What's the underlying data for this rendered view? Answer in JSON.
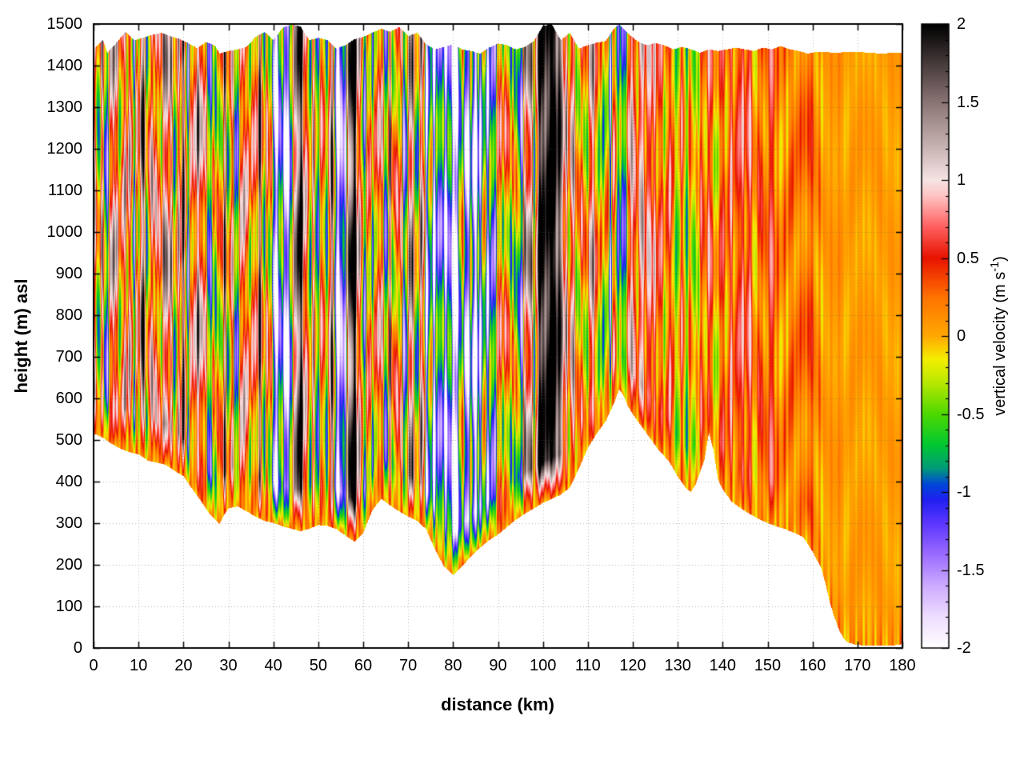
{
  "page": {
    "background": "#ffffff"
  },
  "chart_data": {
    "type": "heatmap",
    "title": "",
    "xlabel": "distance (km)",
    "ylabel": "height (m) asl",
    "xlim": [
      0,
      180
    ],
    "ylim": [
      0,
      1500
    ],
    "x_ticks": [
      0,
      10,
      20,
      30,
      40,
      50,
      60,
      70,
      80,
      90,
      100,
      110,
      120,
      130,
      140,
      150,
      160,
      170,
      180
    ],
    "y_ticks": [
      0,
      100,
      200,
      300,
      400,
      500,
      600,
      700,
      800,
      900,
      1000,
      1100,
      1200,
      1300,
      1400,
      1500
    ],
    "grid": true,
    "grid_style": "dotted-gray",
    "colorbar": {
      "label_main": "vertical velocity (m s",
      "label_sup": "-1",
      "label_close": ")",
      "position": "right",
      "range": [
        -2,
        2
      ],
      "ticks": [
        -2,
        -1.5,
        -1,
        -0.5,
        0,
        0.5,
        1,
        1.5,
        2
      ],
      "tick_labels": [
        "-2",
        "-1.5",
        "-1",
        "-0.5",
        "0",
        "0.5",
        "1",
        "1.5",
        "2"
      ],
      "minor_tick_step": 0.1,
      "colormap": [
        [
          -2.0,
          "#ffffff"
        ],
        [
          -1.8,
          "#eeddff"
        ],
        [
          -1.6,
          "#ccaaff"
        ],
        [
          -1.4,
          "#9b6bff"
        ],
        [
          -1.2,
          "#5a36ff"
        ],
        [
          -1.05,
          "#2020f0"
        ],
        [
          -0.95,
          "#0048d8"
        ],
        [
          -0.85,
          "#009a78"
        ],
        [
          -0.7,
          "#00c832"
        ],
        [
          -0.5,
          "#4fd800"
        ],
        [
          -0.3,
          "#b8e800"
        ],
        [
          -0.15,
          "#f4ee00"
        ],
        [
          0.0,
          "#ffa800"
        ],
        [
          0.25,
          "#ff7300"
        ],
        [
          0.5,
          "#e81200"
        ],
        [
          0.7,
          "#ff5f5f"
        ],
        [
          0.9,
          "#ffc4c4"
        ],
        [
          1.0,
          "#f6e4e4"
        ],
        [
          1.2,
          "#cbb6b6"
        ],
        [
          1.5,
          "#8a7474"
        ],
        [
          1.75,
          "#463a3a"
        ],
        [
          2.0,
          "#000000"
        ]
      ]
    },
    "terrain_profile": [
      [
        0,
        515
      ],
      [
        2,
        505
      ],
      [
        4,
        490
      ],
      [
        6,
        478
      ],
      [
        8,
        470
      ],
      [
        10,
        465
      ],
      [
        12,
        450
      ],
      [
        14,
        445
      ],
      [
        16,
        440
      ],
      [
        18,
        425
      ],
      [
        20,
        412
      ],
      [
        22,
        380
      ],
      [
        24,
        350
      ],
      [
        26,
        318
      ],
      [
        28,
        298
      ],
      [
        29,
        320
      ],
      [
        30,
        335
      ],
      [
        32,
        340
      ],
      [
        34,
        328
      ],
      [
        36,
        315
      ],
      [
        38,
        305
      ],
      [
        40,
        300
      ],
      [
        42,
        292
      ],
      [
        44,
        286
      ],
      [
        46,
        280
      ],
      [
        48,
        286
      ],
      [
        50,
        295
      ],
      [
        52,
        293
      ],
      [
        54,
        285
      ],
      [
        56,
        270
      ],
      [
        58,
        255
      ],
      [
        60,
        276
      ],
      [
        62,
        330
      ],
      [
        64,
        358
      ],
      [
        66,
        342
      ],
      [
        68,
        328
      ],
      [
        70,
        315
      ],
      [
        72,
        305
      ],
      [
        74,
        285
      ],
      [
        76,
        235
      ],
      [
        78,
        195
      ],
      [
        80,
        175
      ],
      [
        82,
        195
      ],
      [
        84,
        220
      ],
      [
        86,
        240
      ],
      [
        88,
        258
      ],
      [
        90,
        272
      ],
      [
        92,
        290
      ],
      [
        94,
        308
      ],
      [
        96,
        322
      ],
      [
        98,
        335
      ],
      [
        100,
        348
      ],
      [
        102,
        358
      ],
      [
        104,
        368
      ],
      [
        106,
        385
      ],
      [
        108,
        430
      ],
      [
        110,
        480
      ],
      [
        112,
        515
      ],
      [
        114,
        545
      ],
      [
        116,
        592
      ],
      [
        117,
        622
      ],
      [
        118,
        606
      ],
      [
        119,
        580
      ],
      [
        120,
        562
      ],
      [
        122,
        532
      ],
      [
        124,
        502
      ],
      [
        126,
        472
      ],
      [
        128,
        450
      ],
      [
        130,
        412
      ],
      [
        132,
        382
      ],
      [
        133,
        375
      ],
      [
        134,
        392
      ],
      [
        135,
        422
      ],
      [
        136,
        452
      ],
      [
        137,
        518
      ],
      [
        138,
        475
      ],
      [
        139,
        405
      ],
      [
        140,
        382
      ],
      [
        142,
        352
      ],
      [
        144,
        336
      ],
      [
        146,
        322
      ],
      [
        148,
        310
      ],
      [
        150,
        300
      ],
      [
        152,
        292
      ],
      [
        154,
        285
      ],
      [
        156,
        276
      ],
      [
        158,
        266
      ],
      [
        160,
        232
      ],
      [
        162,
        192
      ],
      [
        163,
        152
      ],
      [
        164,
        105
      ],
      [
        165,
        72
      ],
      [
        166,
        42
      ],
      [
        167,
        22
      ],
      [
        168,
        12
      ],
      [
        170,
        6
      ],
      [
        174,
        5
      ],
      [
        178,
        5
      ],
      [
        180,
        8
      ]
    ],
    "top_profile": [
      [
        0,
        1442
      ],
      [
        2,
        1462
      ],
      [
        3,
        1432
      ],
      [
        5,
        1456
      ],
      [
        7,
        1482
      ],
      [
        9,
        1462
      ],
      [
        11,
        1468
      ],
      [
        13,
        1475
      ],
      [
        15,
        1480
      ],
      [
        17,
        1472
      ],
      [
        19,
        1465
      ],
      [
        21,
        1455
      ],
      [
        23,
        1443
      ],
      [
        25,
        1458
      ],
      [
        27,
        1448
      ],
      [
        28,
        1430
      ],
      [
        30,
        1436
      ],
      [
        32,
        1440
      ],
      [
        34,
        1446
      ],
      [
        36,
        1470
      ],
      [
        38,
        1482
      ],
      [
        40,
        1462
      ],
      [
        42,
        1492
      ],
      [
        44,
        1500
      ],
      [
        46,
        1495
      ],
      [
        48,
        1462
      ],
      [
        50,
        1468
      ],
      [
        52,
        1462
      ],
      [
        54,
        1442
      ],
      [
        56,
        1450
      ],
      [
        58,
        1464
      ],
      [
        60,
        1470
      ],
      [
        62,
        1480
      ],
      [
        64,
        1490
      ],
      [
        66,
        1482
      ],
      [
        68,
        1494
      ],
      [
        70,
        1472
      ],
      [
        72,
        1480
      ],
      [
        74,
        1452
      ],
      [
        76,
        1440
      ],
      [
        78,
        1446
      ],
      [
        80,
        1452
      ],
      [
        82,
        1440
      ],
      [
        84,
        1436
      ],
      [
        86,
        1430
      ],
      [
        88,
        1444
      ],
      [
        90,
        1454
      ],
      [
        92,
        1450
      ],
      [
        94,
        1440
      ],
      [
        96,
        1446
      ],
      [
        98,
        1460
      ],
      [
        100,
        1496
      ],
      [
        102,
        1500
      ],
      [
        104,
        1462
      ],
      [
        106,
        1480
      ],
      [
        108,
        1442
      ],
      [
        110,
        1450
      ],
      [
        112,
        1456
      ],
      [
        114,
        1460
      ],
      [
        116,
        1492
      ],
      [
        117,
        1500
      ],
      [
        119,
        1478
      ],
      [
        121,
        1460
      ],
      [
        123,
        1450
      ],
      [
        125,
        1455
      ],
      [
        127,
        1450
      ],
      [
        129,
        1440
      ],
      [
        131,
        1446
      ],
      [
        133,
        1440
      ],
      [
        135,
        1432
      ],
      [
        137,
        1440
      ],
      [
        139,
        1436
      ],
      [
        141,
        1440
      ],
      [
        143,
        1444
      ],
      [
        145,
        1440
      ],
      [
        147,
        1436
      ],
      [
        149,
        1444
      ],
      [
        151,
        1440
      ],
      [
        153,
        1448
      ],
      [
        155,
        1440
      ],
      [
        157,
        1436
      ],
      [
        159,
        1430
      ],
      [
        161,
        1434
      ],
      [
        165,
        1432
      ],
      [
        170,
        1434
      ],
      [
        175,
        1430
      ],
      [
        180,
        1432
      ]
    ],
    "field": {
      "description": "Vertical velocity cross-section: fine alternating updraft/downdraft stripes over mountainous terrain; strong downdrafts (blue/violet) near 40-44, 54-56 and 75-90 km; strong updraft columns (dark/black) near 45-47, 57-58 and 100-104 km; mostly weak positive (orange) beyond 150 km.",
      "km_step": 1,
      "mean": [
        0.3,
        -0.2,
        0.8,
        -1.0,
        0.5,
        1.4,
        -0.5,
        1.2,
        0.6,
        -0.8,
        0.4,
        1.6,
        -0.3,
        0.7,
        1.0,
        -0.6,
        1.7,
        0.9,
        -0.4,
        0.5,
        1.3,
        -0.7,
        0.6,
        1.5,
        -0.2,
        0.8,
        -1.2,
        0.4,
        -0.5,
        1.0,
        -0.3,
        0.6,
        -0.9,
        0.3,
        1.1,
        -0.4,
        0.7,
        1.4,
        -0.6,
        0.5,
        -1.3,
        -1.5,
        -0.8,
        -1.6,
        -1.2,
        1.8,
        1.9,
        1.0,
        -0.5,
        0.6,
        -0.9,
        0.8,
        -0.4,
        1.2,
        -1.4,
        -1.7,
        -0.9,
        1.7,
        1.9,
        0.8,
        -0.6,
        0.5,
        -1.0,
        0.9,
        0.3,
        -0.7,
        1.1,
        -0.3,
        0.6,
        -1.1,
        0.4,
        1.3,
        -0.5,
        0.8,
        -1.2,
        -0.4,
        -1.5,
        -0.8,
        -1.6,
        -1.0,
        -1.8,
        -1.3,
        -0.7,
        -1.5,
        -0.9,
        -1.7,
        -1.1,
        -0.5,
        -1.4,
        -0.8,
        0.5,
        -0.6,
        0.9,
        -1.0,
        0.4,
        -1.3,
        0.7,
        1.2,
        -0.4,
        1.6,
        1.9,
        2.0,
        2.0,
        1.9,
        1.6,
        0.8,
        0.3,
        0.9,
        -0.5,
        0.6,
        0.2,
        0.7,
        0.4,
        -0.6,
        0.3,
        -0.9,
        0.5,
        -1.2,
        -0.7,
        0.4,
        0.8,
        0.3,
        0.9,
        0.6,
        0.9,
        0.5,
        0.3,
        0.1,
        0.4,
        0.2,
        -0.3,
        0.3,
        -0.5,
        0.2,
        -0.4,
        0.3,
        0.1,
        0.5,
        0.2,
        0.1,
        0.3,
        0.1,
        0.6,
        0.2,
        0.8,
        0.3,
        0.6,
        0.1,
        0.4,
        0.1,
        0.3,
        0.6,
        0.2,
        0.1,
        0.2,
        0.1,
        0.3,
        0.1,
        0.2,
        0.4,
        0.2,
        0.1,
        0.1,
        0.05,
        0.1,
        0.05,
        0.1,
        0.05,
        0.05,
        0.05,
        0.05,
        0.05,
        0.05,
        0.05,
        0.05,
        0.05,
        0.05,
        0.05,
        0.05,
        0.05,
        0.05
      ],
      "amp": [
        1.2,
        1.2,
        1.2,
        1.2,
        1.2,
        1.2,
        1.2,
        1.2,
        1.2,
        1.2,
        1.2,
        1.2,
        1.2,
        1.2,
        1.2,
        1.2,
        1.2,
        1.2,
        1.2,
        1.2,
        1.2,
        1.2,
        1.2,
        1.2,
        1.2,
        1.2,
        1.2,
        1.2,
        1.2,
        1.2,
        1.2,
        1.2,
        1.2,
        1.2,
        1.2,
        1.2,
        1.2,
        1.2,
        1.2,
        1.2,
        1.2,
        1.2,
        1.2,
        1.2,
        1.2,
        1.0,
        1.0,
        1.0,
        1.0,
        1.0,
        1.0,
        1.0,
        1.0,
        1.0,
        1.0,
        1.0,
        1.0,
        1.0,
        1.0,
        1.2,
        1.2,
        1.2,
        1.2,
        1.2,
        1.2,
        1.2,
        1.2,
        1.2,
        1.2,
        1.2,
        1.2,
        1.2,
        1.2,
        1.2,
        1.2,
        1.2,
        1.2,
        1.2,
        1.2,
        1.2,
        1.2,
        1.2,
        1.2,
        1.2,
        1.2,
        1.2,
        1.2,
        1.2,
        1.2,
        1.2,
        1.2,
        1.2,
        1.2,
        1.2,
        1.2,
        1.2,
        1.2,
        1.2,
        1.2,
        1.2,
        0.6,
        0.6,
        0.6,
        0.6,
        0.6,
        1.0,
        1.0,
        1.0,
        1.0,
        1.0,
        1.0,
        1.0,
        1.0,
        1.0,
        1.0,
        1.0,
        1.0,
        1.0,
        1.0,
        1.0,
        0.7,
        0.7,
        0.7,
        0.7,
        0.7,
        0.7,
        0.7,
        0.7,
        0.7,
        0.7,
        0.6,
        0.6,
        0.6,
        0.6,
        0.6,
        0.6,
        0.6,
        0.6,
        0.6,
        0.6,
        0.5,
        0.5,
        0.5,
        0.5,
        0.5,
        0.5,
        0.5,
        0.5,
        0.5,
        0.5,
        0.35,
        0.35,
        0.35,
        0.35,
        0.35,
        0.35,
        0.35,
        0.35,
        0.35,
        0.35,
        0.3,
        0.3,
        0.3,
        0.12,
        0.12,
        0.12,
        0.12,
        0.12,
        0.12,
        0.12,
        0.12,
        0.12,
        0.12,
        0.12,
        0.12,
        0.12,
        0.12,
        0.12,
        0.12,
        0.12,
        0.12
      ]
    }
  }
}
